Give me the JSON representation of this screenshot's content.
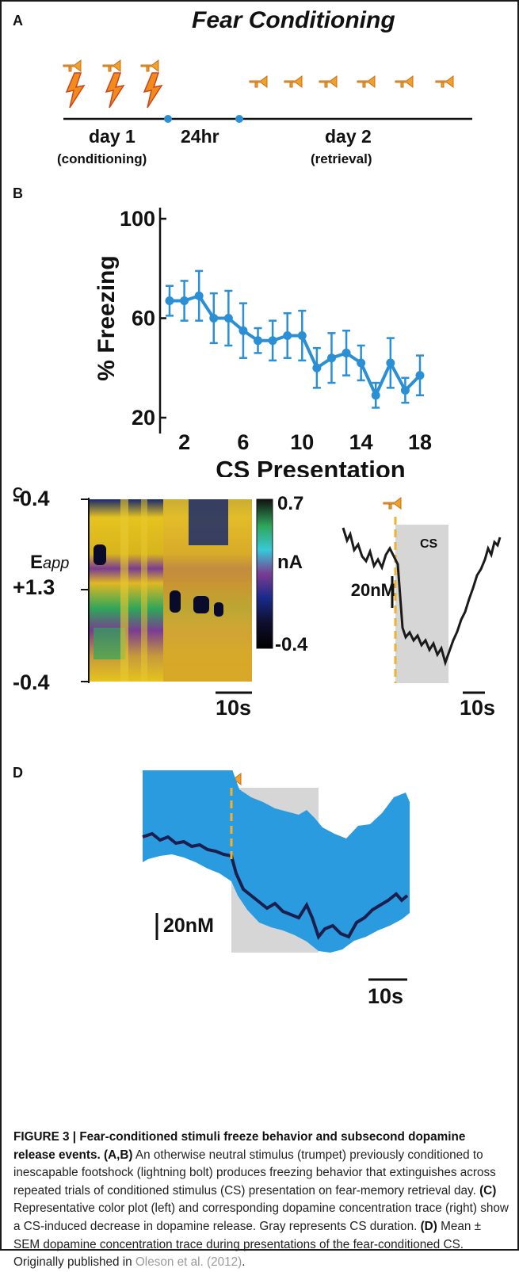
{
  "panels": {
    "a": {
      "letter": "A",
      "title": "Fear Conditioning",
      "day1": "day 1",
      "day1_sub": "(conditioning)",
      "gap": "24hr",
      "day2": "day 2",
      "day2_sub": "(retrieval)"
    },
    "b": {
      "letter": "B"
    },
    "c": {
      "letter": "C",
      "y_top": "-0.4",
      "y_mid": "+1.3",
      "y_bot": "-0.4",
      "eapp_main": "E",
      "eapp_sub": "app",
      "cbar_max": "0.7",
      "cbar_unit": "nA",
      "cbar_min": "-0.4",
      "scale_left": "10s",
      "trace_cs": "CS",
      "trace_scale_y": "20nM",
      "trace_scale_x": "10s"
    },
    "d": {
      "letter": "D",
      "scale_y": "20nM",
      "scale_x": "10s"
    }
  },
  "chart_data": {
    "type": "line",
    "xlabel": "CS Presentation",
    "ylabel": "% Freezing",
    "xlim": [
      1,
      18
    ],
    "ylim": [
      20,
      100
    ],
    "xticks": [
      2,
      6,
      10,
      14,
      18
    ],
    "yticks": [
      20,
      60,
      100
    ],
    "color": "#2a8fd4",
    "x": [
      1,
      2,
      3,
      4,
      5,
      6,
      7,
      8,
      9,
      10,
      11,
      12,
      13,
      14,
      15,
      16,
      17,
      18
    ],
    "values": [
      67,
      67,
      69,
      60,
      60,
      55,
      51,
      51,
      53,
      53,
      40,
      44,
      46,
      42,
      29,
      42,
      31,
      37
    ],
    "sem": [
      6,
      8,
      10,
      10,
      11,
      11,
      5,
      8,
      9,
      10,
      8,
      10,
      9,
      7,
      5,
      10,
      5,
      8
    ]
  },
  "caption": {
    "figure_label": "FIGURE 3 | Fear-conditioned stimuli freeze behavior and subsecond dopamine release events.",
    "ab_label": "(A,B)",
    "ab_text": "An otherwise neutral stimulus (trumpet) previously conditioned to inescapable footshock (lightning bolt) produces freezing behavior that extinguishes across repeated trials of conditioned stimulus (CS) presentation on fear-memory retrieval day.",
    "c_label": "(C)",
    "c_text": "Representative color plot (left) and corresponding dopamine concentration trace (right) show a CS-induced decrease in dopamine release. Gray represents CS duration.",
    "d_label": "(D)",
    "d_text": "Mean ± SEM dopamine concentration trace during presentations of the fear-conditioned CS. Originally published in",
    "ref": "Oleson et al. (2012)",
    "end": "."
  },
  "colors": {
    "cs_shade": "#d6d6d6",
    "trace": "#1a1a1a",
    "mean": "#1c1f4d",
    "sem_band": "#2b9be0",
    "onset": "#f0b232"
  }
}
